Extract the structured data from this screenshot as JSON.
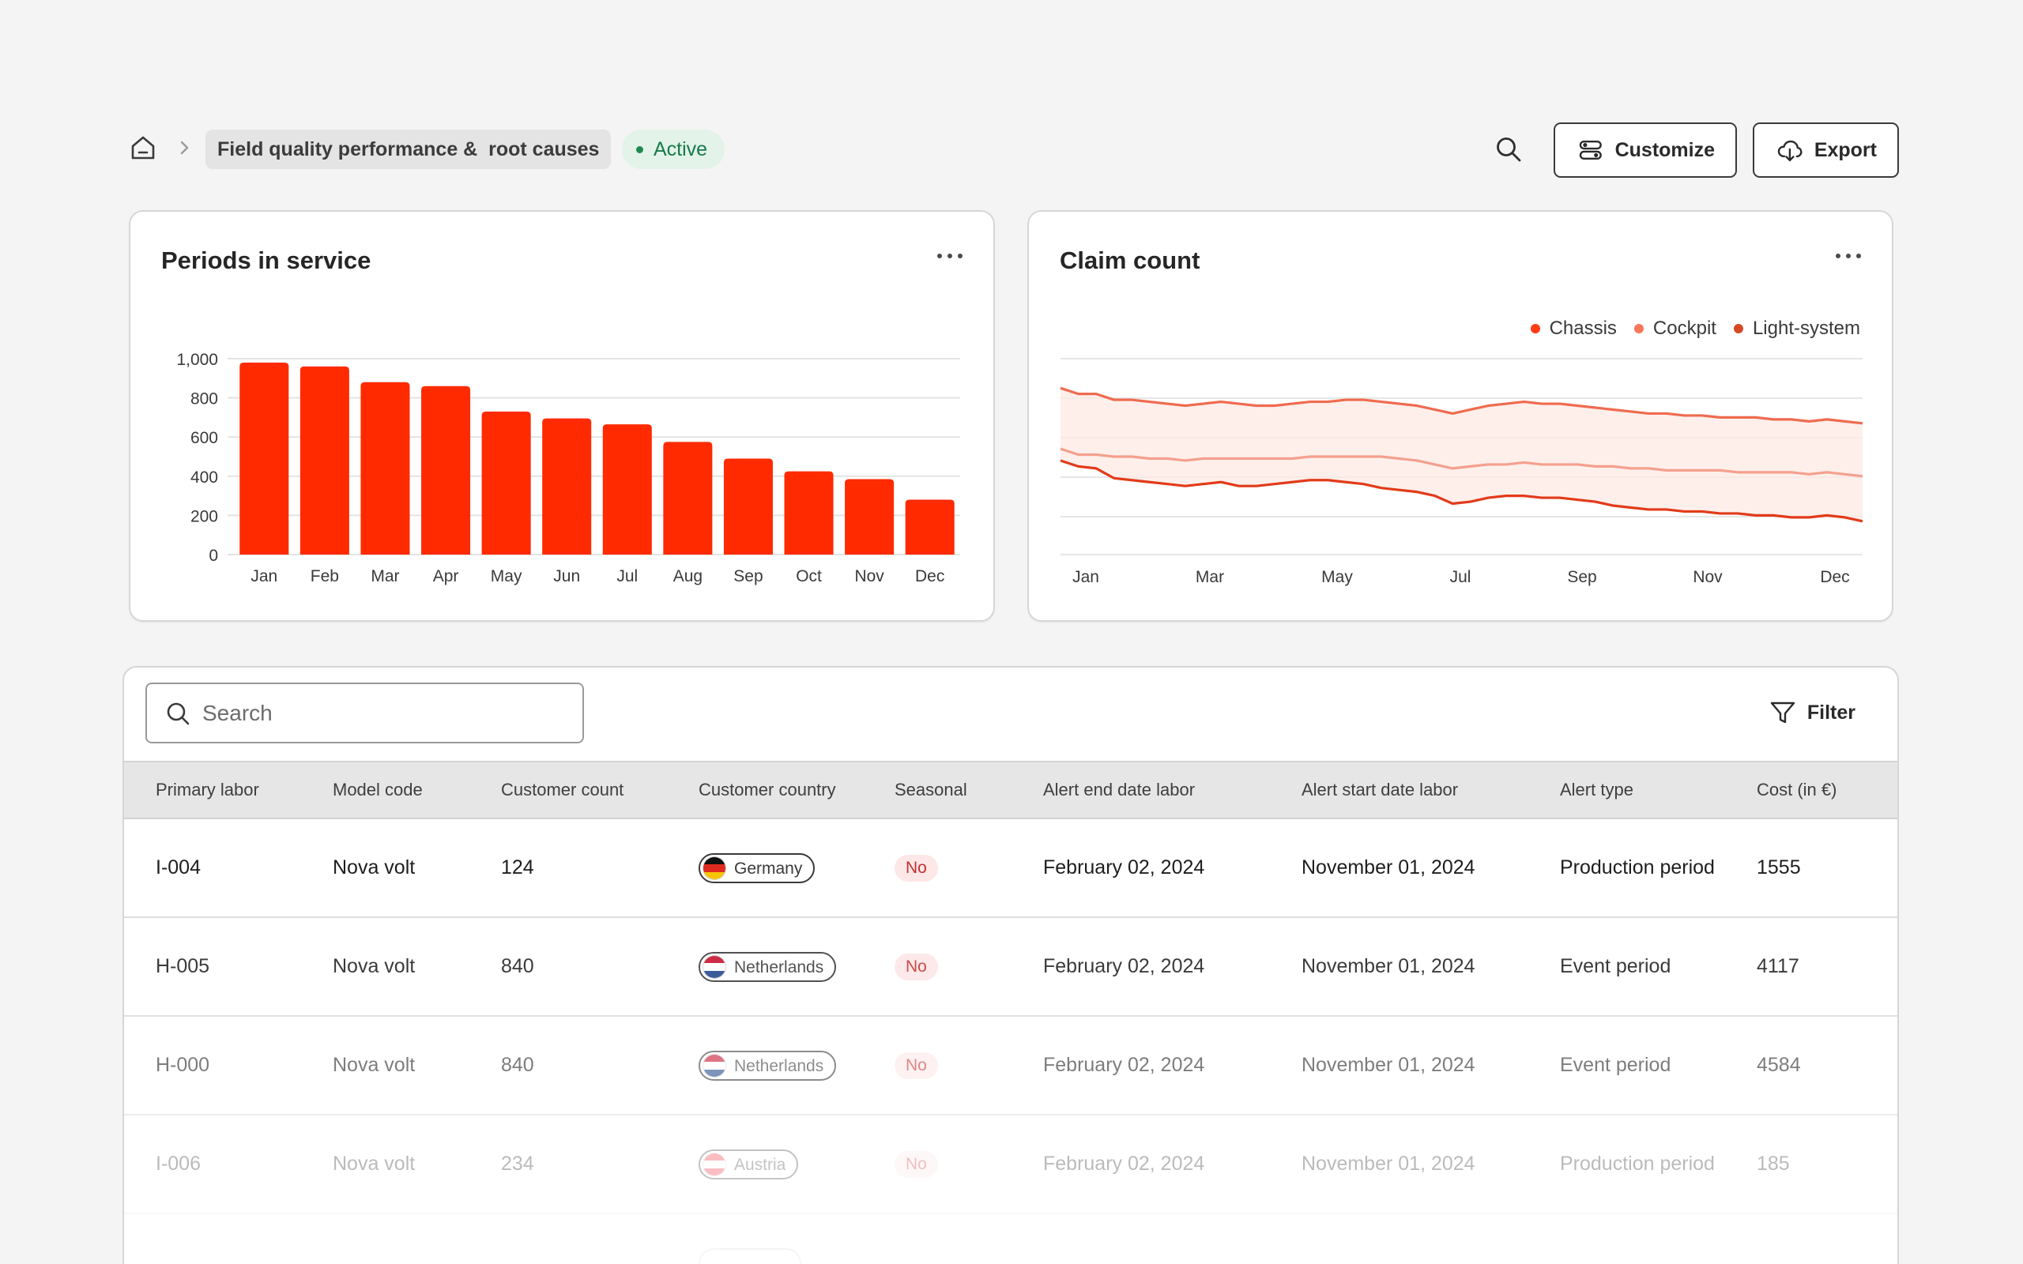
{
  "breadcrumb": {
    "page_title": "Field quality performance &  root causes",
    "status": "Active"
  },
  "toolbar": {
    "customize_label": "Customize",
    "export_label": "Export"
  },
  "colors": {
    "accent_red": "#ff2a00",
    "chassis": "#f4a08e",
    "cockpit": "#ef6b4f",
    "light_system": "#e23b1a",
    "status_green": "#1f8a52"
  },
  "charts": {
    "periods": {
      "title": "Periods in service"
    },
    "claims": {
      "title": "Claim count"
    }
  },
  "chart_data": [
    {
      "type": "bar",
      "title": "Periods in service",
      "categories": [
        "Jan",
        "Feb",
        "Mar",
        "Apr",
        "May",
        "Jun",
        "Jul",
        "Aug",
        "Sep",
        "Oct",
        "Nov",
        "Dec"
      ],
      "values": [
        980,
        960,
        880,
        860,
        730,
        695,
        665,
        575,
        490,
        425,
        385,
        280
      ],
      "ylim": [
        0,
        1000
      ],
      "yticks": [
        "0",
        "200",
        "400",
        "600",
        "800",
        "1,000"
      ],
      "grid": true
    },
    {
      "type": "line",
      "title": "Claim count",
      "x_ticks": [
        "Jan",
        "Mar",
        "May",
        "Jul",
        "Sep",
        "Nov",
        "Dec"
      ],
      "legend_position": "top-right",
      "grid": true,
      "area_fill_between": [
        "Cockpit",
        "Light-system"
      ],
      "series": [
        {
          "name": "Chassis",
          "values": [
            85,
            82,
            82,
            79,
            79,
            78,
            77,
            76,
            77,
            78,
            77,
            76,
            76,
            77,
            78,
            78,
            79,
            79,
            78,
            77,
            76,
            74,
            72,
            74,
            76,
            77,
            78,
            77,
            77,
            76,
            75,
            74,
            73,
            72,
            72,
            71,
            71,
            70,
            70,
            70,
            69,
            69,
            68,
            69,
            68,
            67
          ]
        },
        {
          "name": "Cockpit",
          "values": [
            54,
            51,
            51,
            50,
            50,
            49,
            49,
            48,
            49,
            49,
            49,
            49,
            49,
            49,
            50,
            50,
            50,
            50,
            50,
            49,
            48,
            46,
            44,
            45,
            46,
            46,
            47,
            46,
            46,
            46,
            45,
            45,
            44,
            44,
            43,
            43,
            43,
            43,
            42,
            42,
            42,
            42,
            41,
            42,
            41,
            40
          ]
        },
        {
          "name": "Light-system",
          "values": [
            48,
            45,
            44,
            39,
            38,
            37,
            36,
            35,
            36,
            37,
            35,
            35,
            36,
            37,
            38,
            38,
            37,
            36,
            34,
            33,
            32,
            30,
            26,
            27,
            29,
            30,
            30,
            29,
            29,
            28,
            27,
            25,
            24,
            23,
            23,
            22,
            22,
            21,
            21,
            20,
            20,
            19,
            19,
            20,
            19,
            17
          ]
        }
      ]
    }
  ],
  "table": {
    "search_placeholder": "Search",
    "filter_label": "Filter",
    "columns": [
      "Primary labor",
      "Model code",
      "Customer count",
      "Customer country",
      "Seasonal",
      "Alert end date labor",
      "Alert start date labor",
      "Alert type",
      "Cost (in €)"
    ],
    "rows": [
      {
        "primary_labor": "I-004",
        "model_code": "Nova volt",
        "customer_count": "124",
        "country": "Germany",
        "seasonal": "No",
        "end_date": "February 02, 2024",
        "start_date": "November 01, 2024",
        "alert_type": "Production period",
        "cost": "1555"
      },
      {
        "primary_labor": "H-005",
        "model_code": "Nova volt",
        "customer_count": "840",
        "country": "Netherlands",
        "seasonal": "No",
        "end_date": "February 02, 2024",
        "start_date": "November 01, 2024",
        "alert_type": "Event period",
        "cost": "4117"
      },
      {
        "primary_labor": "H-000",
        "model_code": "Nova volt",
        "customer_count": "840",
        "country": "Netherlands",
        "seasonal": "No",
        "end_date": "February 02, 2024",
        "start_date": "November 01, 2024",
        "alert_type": "Event period",
        "cost": "4584"
      },
      {
        "primary_labor": "I-006",
        "model_code": "Nova volt",
        "customer_count": "234",
        "country": "Austria",
        "seasonal": "No",
        "end_date": "February 02, 2024",
        "start_date": "November 01, 2024",
        "alert_type": "Production period",
        "cost": "185"
      }
    ]
  }
}
